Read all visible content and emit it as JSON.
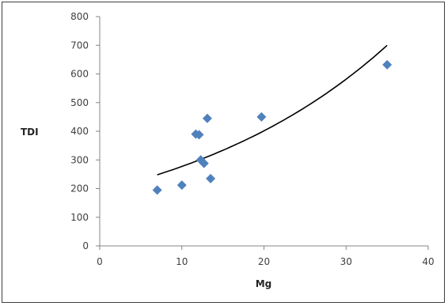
{
  "chart_data": {
    "type": "scatter",
    "title": "",
    "xlabel": "Mg",
    "ylabel": "TDI",
    "xlim": [
      0,
      40
    ],
    "ylim": [
      0,
      800
    ],
    "x_ticks": [
      0,
      10,
      20,
      30,
      40
    ],
    "y_ticks": [
      0,
      100,
      200,
      300,
      400,
      500,
      600,
      700,
      800
    ],
    "grid": false,
    "legend": "none",
    "marker_color": "#4f81bd",
    "trendline_color": "#000000",
    "points": [
      {
        "x": 7,
        "y": 195
      },
      {
        "x": 10,
        "y": 212
      },
      {
        "x": 11.7,
        "y": 390
      },
      {
        "x": 12.1,
        "y": 388
      },
      {
        "x": 12.3,
        "y": 300
      },
      {
        "x": 12.7,
        "y": 288
      },
      {
        "x": 13.1,
        "y": 445
      },
      {
        "x": 13.5,
        "y": 235
      },
      {
        "x": 19.7,
        "y": 450
      },
      {
        "x": 35,
        "y": 632
      }
    ],
    "trendline": {
      "type": "exponential",
      "x_range": [
        7,
        35
      ],
      "y_start": 248,
      "y_end": 700
    }
  }
}
